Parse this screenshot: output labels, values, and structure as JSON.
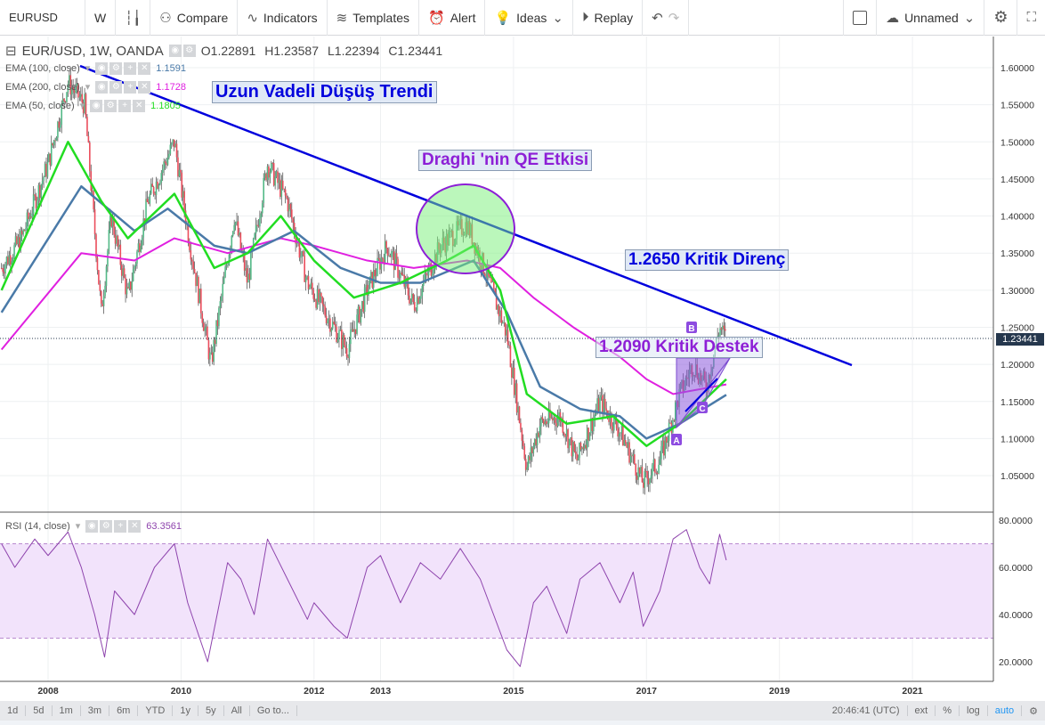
{
  "toolbar": {
    "symbol": "EURUSD",
    "interval": "W",
    "candles_icon": "candlestick-icon",
    "compare": "Compare",
    "indicators": "Indicators",
    "templates": "Templates",
    "alert": "Alert",
    "ideas": "Ideas",
    "replay": "Replay",
    "layout_name": "Unnamed"
  },
  "legend": {
    "title": "EUR/USD, 1W, OANDA",
    "open": "O1.22891",
    "high": "H1.23587",
    "low": "L1.22394",
    "close": "C1.23441",
    "indicators": [
      {
        "label": "EMA (100, close)",
        "value": "1.1591",
        "color": "#4a7aa8"
      },
      {
        "label": "EMA (200, close)",
        "value": "1.1728",
        "color": "#e020e0"
      },
      {
        "label": "EMA (50, close)",
        "value": "1.1805",
        "color": "#22dd22"
      }
    ],
    "rsi_label": "RSI (14, close)",
    "rsi_value": "63.3561"
  },
  "annotations": {
    "trend": "Uzun Vadeli Düşüş Trendi",
    "qe": "Draghi 'nin QE Etkisi",
    "resistance": "1.2650 Kritik Direnç",
    "support": "1.2090 Kritik Destek",
    "point_a": "A",
    "point_b": "B",
    "point_c": "C"
  },
  "current_price": "1.23441",
  "chart_data": {
    "type": "line",
    "price_axis": {
      "ticks": [
        "1.60000",
        "1.55000",
        "1.50000",
        "1.45000",
        "1.40000",
        "1.35000",
        "1.30000",
        "1.25000",
        "1.20000",
        "1.15000",
        "1.10000",
        "1.05000"
      ],
      "ylim": [
        1.02,
        1.62
      ]
    },
    "rsi_axis": {
      "ticks": [
        "80.0000",
        "60.0000",
        "40.0000",
        "20.0000"
      ],
      "ylim": [
        15,
        82
      ],
      "bands": [
        30,
        70
      ]
    },
    "x_ticks": [
      "2008",
      "2010",
      "2012",
      "2013",
      "2015",
      "2017",
      "2019",
      "2021"
    ],
    "price": {
      "x": [
        2007.3,
        2007.6,
        2008.0,
        2008.3,
        2008.55,
        2008.8,
        2008.95,
        2009.2,
        2009.5,
        2009.9,
        2010.1,
        2010.45,
        2010.8,
        2011.0,
        2011.3,
        2011.6,
        2011.9,
        2012.1,
        2012.5,
        2012.8,
        2013.1,
        2013.5,
        2013.9,
        2014.3,
        2014.6,
        2014.9,
        2015.2,
        2015.4,
        2015.7,
        2015.95,
        2016.3,
        2016.6,
        2016.95,
        2017.2,
        2017.5,
        2017.7,
        2017.9,
        2018.1,
        2018.2
      ],
      "y": [
        1.33,
        1.37,
        1.47,
        1.58,
        1.55,
        1.27,
        1.4,
        1.29,
        1.42,
        1.5,
        1.38,
        1.2,
        1.4,
        1.31,
        1.47,
        1.42,
        1.31,
        1.28,
        1.22,
        1.3,
        1.36,
        1.28,
        1.36,
        1.39,
        1.32,
        1.24,
        1.06,
        1.12,
        1.13,
        1.07,
        1.15,
        1.11,
        1.04,
        1.07,
        1.16,
        1.2,
        1.17,
        1.25,
        1.234
      ]
    },
    "ema_50": {
      "x": [
        2007.3,
        2008.3,
        2008.8,
        2009.2,
        2009.9,
        2010.5,
        2011.0,
        2011.5,
        2012.0,
        2012.6,
        2013.3,
        2014.0,
        2014.4,
        2014.8,
        2015.2,
        2015.8,
        2016.5,
        2017.0,
        2017.5,
        2018.2
      ],
      "y": [
        1.3,
        1.5,
        1.42,
        1.37,
        1.43,
        1.33,
        1.35,
        1.4,
        1.34,
        1.29,
        1.31,
        1.34,
        1.36,
        1.3,
        1.16,
        1.12,
        1.13,
        1.09,
        1.12,
        1.18
      ]
    },
    "ema_100": {
      "x": [
        2007.3,
        2008.5,
        2009.3,
        2009.8,
        2010.5,
        2011.0,
        2011.7,
        2012.4,
        2013.0,
        2013.6,
        2014.4,
        2014.9,
        2015.4,
        2016.0,
        2016.6,
        2017.0,
        2017.5,
        2018.2
      ],
      "y": [
        1.27,
        1.44,
        1.38,
        1.41,
        1.36,
        1.35,
        1.38,
        1.33,
        1.31,
        1.31,
        1.34,
        1.27,
        1.17,
        1.14,
        1.13,
        1.1,
        1.12,
        1.159
      ]
    },
    "ema_200": {
      "x": [
        2007.3,
        2008.5,
        2009.3,
        2009.9,
        2010.7,
        2011.5,
        2012.0,
        2012.8,
        2013.5,
        2014.3,
        2014.8,
        2015.3,
        2015.9,
        2016.6,
        2017.0,
        2017.4,
        2018.2
      ],
      "y": [
        1.22,
        1.35,
        1.34,
        1.37,
        1.35,
        1.37,
        1.36,
        1.34,
        1.33,
        1.34,
        1.33,
        1.29,
        1.25,
        1.21,
        1.18,
        1.16,
        1.173
      ]
    },
    "rsi": {
      "x": [
        2007.3,
        2007.5,
        2007.8,
        2008.0,
        2008.3,
        2008.5,
        2008.7,
        2008.85,
        2009.0,
        2009.3,
        2009.6,
        2009.9,
        2010.1,
        2010.4,
        2010.7,
        2010.9,
        2011.1,
        2011.3,
        2011.6,
        2011.9,
        2012.0,
        2012.3,
        2012.5,
        2012.8,
        2013.0,
        2013.3,
        2013.6,
        2013.9,
        2014.2,
        2014.5,
        2014.7,
        2014.9,
        2015.1,
        2015.3,
        2015.5,
        2015.8,
        2016.0,
        2016.3,
        2016.6,
        2016.8,
        2016.95,
        2017.2,
        2017.4,
        2017.6,
        2017.8,
        2017.95,
        2018.1,
        2018.2
      ],
      "y": [
        70,
        60,
        72,
        65,
        75,
        60,
        40,
        22,
        50,
        40,
        60,
        70,
        45,
        20,
        62,
        55,
        40,
        72,
        55,
        38,
        45,
        35,
        30,
        60,
        65,
        45,
        62,
        55,
        68,
        55,
        40,
        25,
        18,
        45,
        52,
        32,
        55,
        62,
        45,
        58,
        35,
        50,
        72,
        76,
        60,
        53,
        74,
        63
      ]
    }
  },
  "bottom_bar": {
    "ranges": [
      "1d",
      "5d",
      "1m",
      "3m",
      "6m",
      "YTD",
      "1y",
      "5y",
      "All",
      "Go to..."
    ],
    "time": "20:46:41 (UTC)",
    "options": [
      "ext",
      "%",
      "log",
      "auto"
    ]
  }
}
